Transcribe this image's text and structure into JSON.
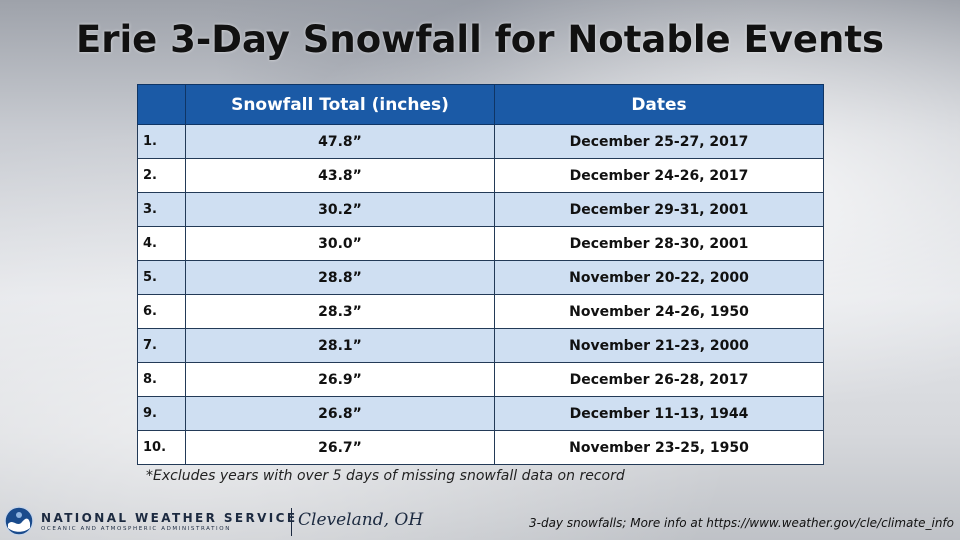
{
  "title": "Erie 3-Day Snowfall for Notable Events",
  "table": {
    "headers": [
      "",
      "Snowfall Total (inches)",
      "Dates"
    ],
    "header_color": "#1b5aa6",
    "stripe_color": "#cfdff2",
    "rows": [
      {
        "rank": "1.",
        "total": "47.8”",
        "dates": "December 25-27, 2017"
      },
      {
        "rank": "2.",
        "total": "43.8”",
        "dates": "December 24-26, 2017"
      },
      {
        "rank": "3.",
        "total": "30.2”",
        "dates": "December 29-31, 2001"
      },
      {
        "rank": "4.",
        "total": "30.0”",
        "dates": "December 28-30, 2001"
      },
      {
        "rank": "5.",
        "total": "28.8”",
        "dates": "November 20-22, 2000"
      },
      {
        "rank": "6.",
        "total": "28.3”",
        "dates": "November 24-26, 1950"
      },
      {
        "rank": "7.",
        "total": "28.1”",
        "dates": "November 21-23, 2000"
      },
      {
        "rank": "8.",
        "total": "26.9”",
        "dates": "December 26-28, 2017"
      },
      {
        "rank": "9.",
        "total": "26.8”",
        "dates": "December 11-13, 1944"
      },
      {
        "rank": "10.",
        "total": "26.7”",
        "dates": "November 23-25, 1950"
      }
    ]
  },
  "footnote": "*Excludes years with over 5 days of missing snowfall data on record",
  "branding": {
    "logo_icon": "noaa-logo-icon",
    "name": "NATIONAL WEATHER SERVICE",
    "subtitle": "OCEANIC AND ATMOSPHERIC ADMINISTRATION",
    "office": "Cleveland, OH"
  },
  "credit": "3-day snowfalls; More info at https://www.weather.gov/cle/climate_info"
}
